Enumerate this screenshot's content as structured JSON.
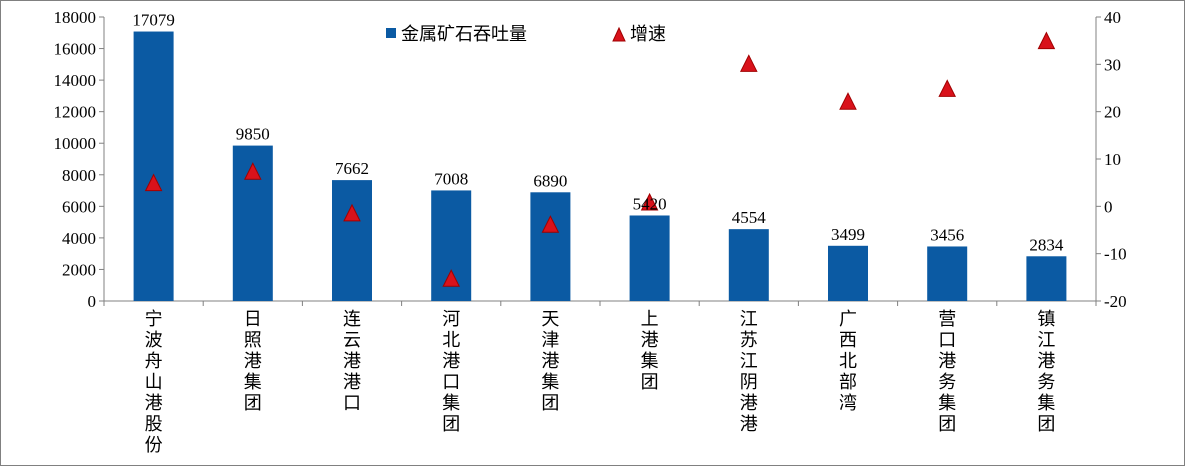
{
  "chart_data": {
    "type": "bar",
    "categories": [
      "宁波舟山港股份",
      "日照港集团",
      "连云港港口",
      "河北港口集团",
      "天津港集团",
      "上港集团",
      "江苏江阴港港",
      "广西北部湾",
      "营口港务集团",
      "镇江港务集团"
    ],
    "series": [
      {
        "name": "金属矿石吞吐量",
        "type": "bar",
        "axis": "left",
        "color": "#0b5aa3",
        "values": [
          17079,
          9850,
          7662,
          7008,
          6890,
          5420,
          4554,
          3499,
          3456,
          2834
        ]
      },
      {
        "name": "增速",
        "type": "scatter",
        "axis": "right",
        "color": "#d9121b",
        "values": [
          4.8,
          7.2,
          -1.6,
          -15.4,
          -4.0,
          0.7,
          30.0,
          22.0,
          24.7,
          34.8
        ]
      }
    ],
    "ylim_left": [
      0,
      18000
    ],
    "ylim_right": [
      -20,
      40
    ],
    "yticks_left": [
      "0",
      "2000",
      "4000",
      "6000",
      "8000",
      "10000",
      "12000",
      "14000",
      "16000",
      "18000"
    ],
    "yticks_right": [
      "-20",
      "-10",
      "0",
      "10",
      "20",
      "30",
      "40"
    ],
    "data_labels": [
      "17079",
      "9850",
      "7662",
      "7008",
      "6890",
      "5420",
      "4554",
      "3499",
      "3456",
      "2834"
    ],
    "legend": {
      "position": "top-center",
      "entries": [
        "金属矿石吞吐量",
        "增速"
      ]
    },
    "grid": false
  }
}
